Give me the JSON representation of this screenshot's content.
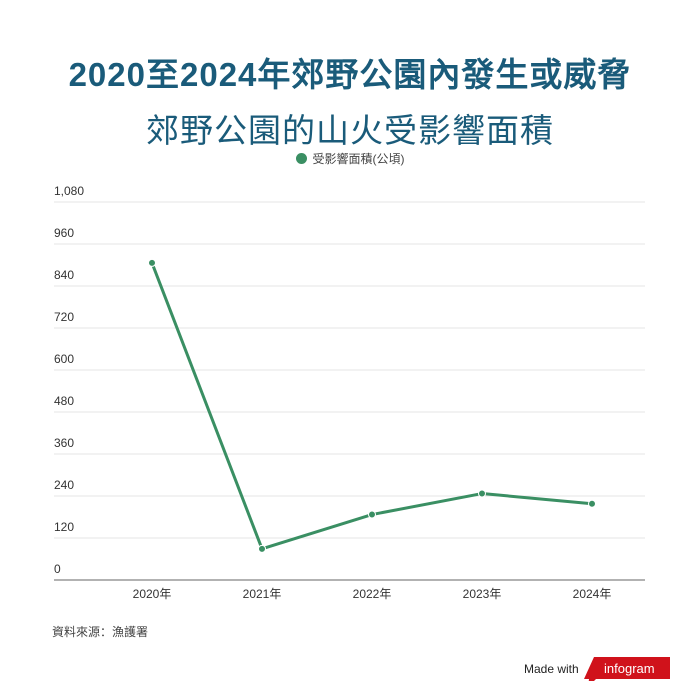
{
  "title_line1": "2020至2024年郊野公園內發生或威脅",
  "title_line2": "郊野公園的山火受影響面積",
  "source": "資料來源：漁護署",
  "made_with": "Made with",
  "brand": "infogram",
  "colors": {
    "series": "#3a8f63",
    "title": "#1a5b7a",
    "brand": "#d0121b"
  },
  "chart_data": {
    "type": "line",
    "categories": [
      "2020年",
      "2021年",
      "2022年",
      "2023年",
      "2024年"
    ],
    "series": [
      {
        "name": "受影響面積(公頃)",
        "values": [
          906,
          89,
          187,
          247,
          218
        ]
      }
    ],
    "ylim": [
      0,
      1080
    ],
    "yticks": [
      "0",
      "120",
      "240",
      "360",
      "480",
      "600",
      "720",
      "840",
      "960",
      "1,080"
    ],
    "grid": true,
    "legend": "top-center"
  }
}
